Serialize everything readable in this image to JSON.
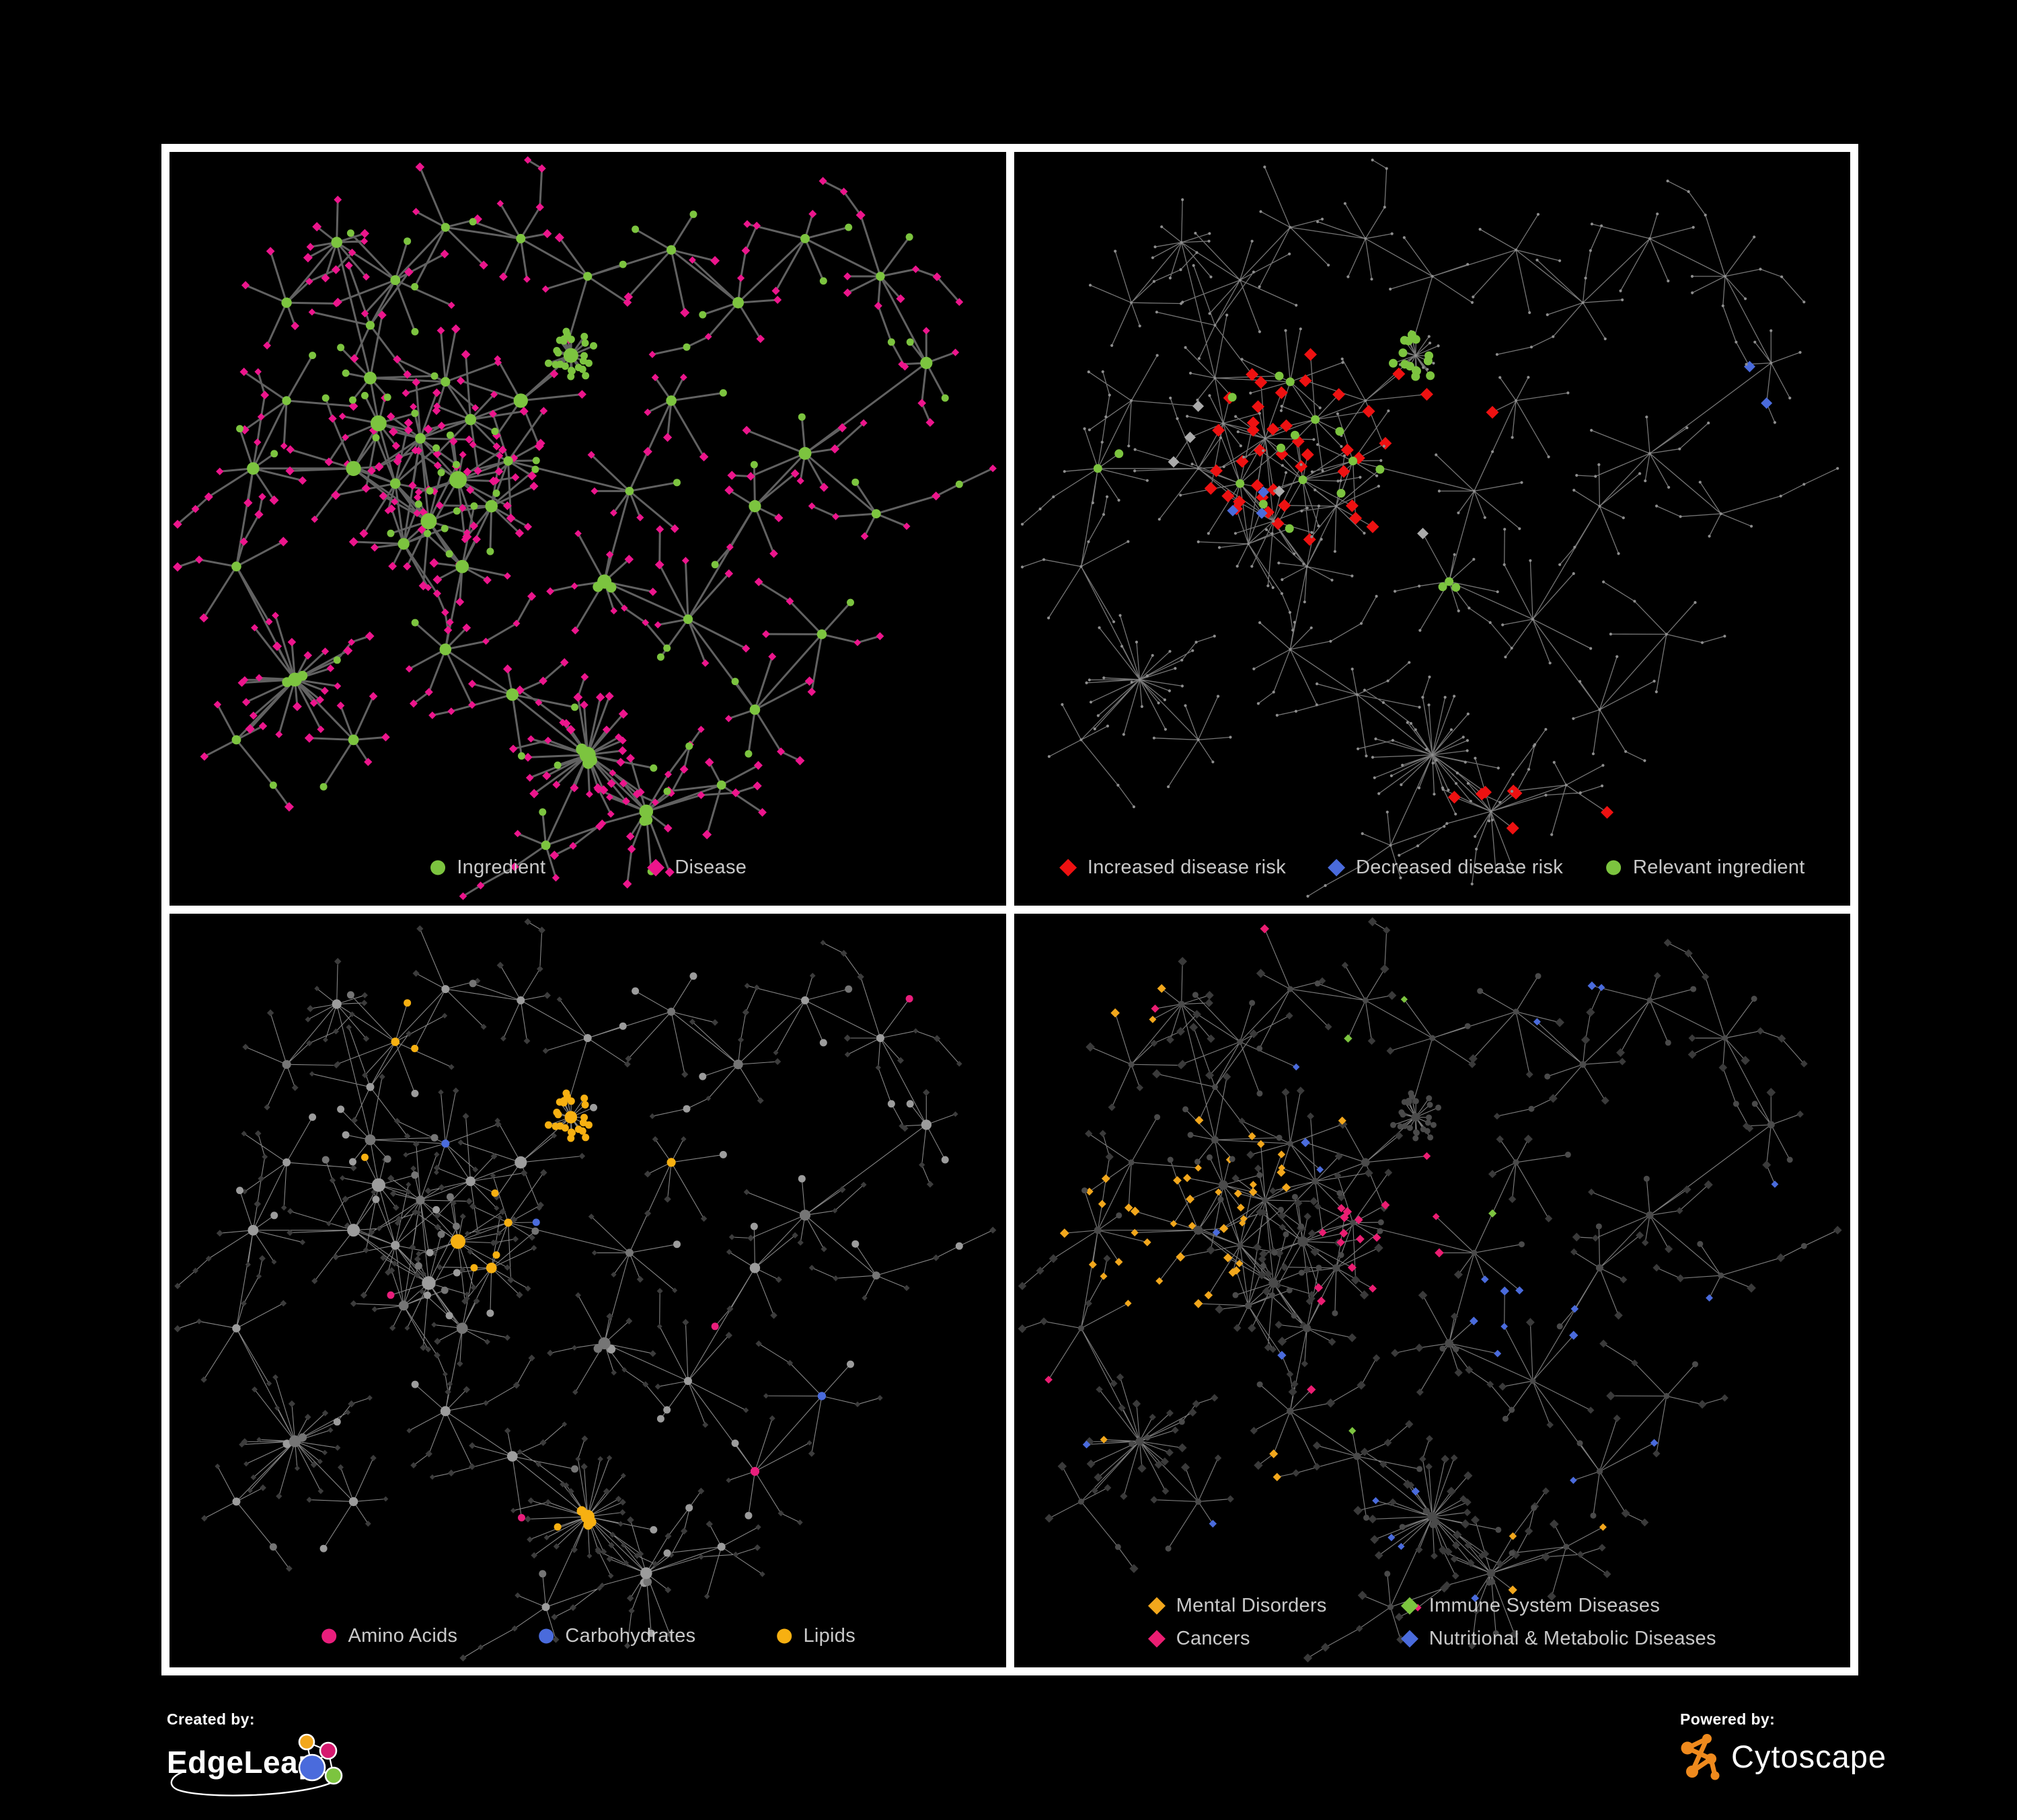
{
  "page": {
    "background": "#000000",
    "frame_color": "#FFFFFF"
  },
  "colors": {
    "ingredient_green": "#7CC43F",
    "disease_pink": "#EC158C",
    "risk_red": "#EE1111",
    "risk_blue": "#4A6BDC",
    "neutral_gray_diamond": "#ABABAB",
    "lipids_yellow": "#F7B011",
    "amino_pink": "#E91E7C",
    "carb_blue": "#4A6BDC",
    "mental_orange": "#F2A71C",
    "cancers_pink": "#EB1D72",
    "immune_green": "#7CC43F",
    "nutritional_blue": "#4A6BDC",
    "legend_text": "#C9C9C9"
  },
  "panels": [
    {
      "name": "ingredient-disease-network",
      "legend_layout": "row",
      "legend": [
        {
          "shape": "circle",
          "color": "#7CC43F",
          "label": "Ingredient"
        },
        {
          "shape": "diamond",
          "color": "#EC158C",
          "label": "Disease"
        }
      ],
      "net": {
        "mode": "two-tone",
        "seed": 11,
        "edge": {
          "color": "#666666",
          "width": 3.0,
          "opacity": 0.95
        },
        "circle_color": "#7CC43F",
        "diamond_color": "#EC158C",
        "leaf_circle_r": 5.5,
        "diamond_s": 6.2
      }
    },
    {
      "name": "disease-risk-network",
      "legend_layout": "row",
      "legend": [
        {
          "shape": "diamond",
          "color": "#EE1111",
          "label": "Increased disease risk"
        },
        {
          "shape": "diamond",
          "color": "#4A6BDC",
          "label": "Decreased disease risk"
        },
        {
          "shape": "circle",
          "color": "#7CC43F",
          "label": "Relevant ingredient"
        }
      ],
      "net": {
        "mode": "highlight",
        "seed": 22,
        "edge": {
          "color": "#8A8A8A",
          "width": 1.3,
          "opacity": 0.85
        },
        "base_color": "#8E8E8E",
        "base_r": 2.1,
        "rules": [
          {
            "name": "increased-risk",
            "shape": "diamond",
            "color": "#EE1111",
            "size": 9.5,
            "anchors": [
              [
                0.37,
                0.39,
                0.15,
                0.45
              ],
              [
                0.52,
                0.33,
                0.06,
                0.5
              ],
              [
                0.57,
                0.86,
                0.05,
                0.7
              ],
              [
                0.72,
                0.9,
                0.04,
                0.8
              ],
              [
                0.63,
                0.53,
                0.05,
                0.3
              ],
              [
                0.6,
                0.13,
                0.04,
                0.4
              ]
            ]
          },
          {
            "name": "decreased-risk",
            "shape": "diamond",
            "color": "#4A6BDC",
            "size": 8.5,
            "anchors": [
              [
                0.9,
                0.29,
                0.05,
                0.7
              ],
              [
                0.27,
                0.46,
                0.055,
                0.5
              ]
            ]
          },
          {
            "name": "other-association",
            "shape": "diamond",
            "color": "#ABABAB",
            "size": 8.5,
            "anchors": [
              [
                0.3,
                0.41,
                0.13,
                0.1
              ],
              [
                0.47,
                0.5,
                0.05,
                0.3
              ],
              [
                0.22,
                0.4,
                0.05,
                0.45
              ]
            ]
          },
          {
            "name": "relevant-ingredient",
            "shape": "circle",
            "color": "#7CC43F",
            "size": 6.5,
            "anchors": [
              [
                0.4,
                0.37,
                0.15,
                0.5
              ],
              [
                0.12,
                0.43,
                0.05,
                0.7
              ],
              [
                0.52,
                0.57,
                0.04,
                1.0
              ],
              [
                0.3,
                0.2,
                0.04,
                0.4
              ],
              [
                0.48,
                0.27,
                0.04,
                0.2
              ]
            ]
          }
        ]
      }
    },
    {
      "name": "ingredient-groups-network",
      "legend_layout": "row",
      "legend": [
        {
          "shape": "circle",
          "color": "#E91E7C",
          "label": "Amino Acids"
        },
        {
          "shape": "circle",
          "color": "#4A6BDC",
          "label": "Carbohydrates"
        },
        {
          "shape": "circle",
          "color": "#F7B011",
          "label": "Lipids"
        }
      ],
      "net": {
        "mode": "circle-cat",
        "seed": 33,
        "edge": {
          "color": "#A7A7A7",
          "width": 1.1,
          "opacity": 0.8
        },
        "diamond_color": "#3C3C3C",
        "diamond_s": 4.6,
        "circle_color": "#9C9C9C",
        "circle_alt": "#757575",
        "leaf_circle_r": 5.5,
        "rules": [
          {
            "name": "carbohydrates",
            "color": "#4A6BDC",
            "scatter": 0.012,
            "anchors": [
              [
                0.4,
                0.185,
                0.045,
                0.6
              ],
              [
                0.355,
                0.295,
                0.035,
                0.4
              ]
            ]
          },
          {
            "name": "lipids",
            "color": "#F7B011",
            "scatter": 0.035,
            "anchors": [
              [
                0.48,
                0.27,
                0.05,
                0.95
              ],
              [
                0.37,
                0.2,
                0.1,
                0.5
              ],
              [
                0.42,
                0.43,
                0.085,
                0.55
              ],
              [
                0.5,
                0.8,
                0.05,
                0.9
              ],
              [
                0.56,
                0.6,
                0.05,
                0.4
              ],
              [
                0.3,
                0.12,
                0.06,
                0.4
              ]
            ]
          },
          {
            "name": "amino-acids",
            "color": "#E91E7C",
            "scatter": 0.05,
            "south": [
              0.58,
              0.11
            ],
            "anchors": [
              [
                0.57,
                0.72,
                0.05,
                0.5
              ],
              [
                0.1,
                0.44,
                0.04,
                0.5
              ]
            ]
          }
        ]
      }
    },
    {
      "name": "disease-groups-network",
      "legend_layout": "grid2",
      "legend": [
        {
          "shape": "diamond",
          "color": "#F2A71C",
          "label": "Mental Disorders"
        },
        {
          "shape": "diamond",
          "color": "#7CC43F",
          "label": "Immune System Diseases"
        },
        {
          "shape": "diamond",
          "color": "#EB1D72",
          "label": "Cancers"
        },
        {
          "shape": "diamond",
          "color": "#4A6BDC",
          "label": "Nutritional & Metabolic Diseases"
        }
      ],
      "net": {
        "mode": "diamond-cat",
        "seed": 44,
        "edge": {
          "color": "#9A9A9A",
          "width": 1.15,
          "opacity": 0.8
        },
        "circle_color": "#4A4A4A",
        "leaf_circle_r": 4.5,
        "diamond_color": "#3A3A3A",
        "diamond_s": 6.0,
        "rules": [
          {
            "name": "mental-disorders",
            "color": "#F2A71C",
            "scatter": 0.02,
            "anchors": [
              [
                0.17,
                0.43,
                0.115,
                0.85
              ],
              [
                0.26,
                0.33,
                0.07,
                0.5
              ],
              [
                0.13,
                0.1,
                0.06,
                0.45
              ],
              [
                0.3,
                0.7,
                0.05,
                0.5
              ]
            ]
          },
          {
            "name": "cancers",
            "color": "#EB1D72",
            "scatter": 0.02,
            "anchors": [
              [
                0.45,
                0.46,
                0.1,
                0.7
              ],
              [
                0.52,
                0.33,
                0.06,
                0.5
              ],
              [
                0.88,
                0.42,
                0.05,
                0.8
              ],
              [
                0.4,
                0.63,
                0.05,
                0.5
              ],
              [
                0.2,
                0.88,
                0.04,
                0.4
              ]
            ]
          },
          {
            "name": "nutritional-metabolic",
            "color": "#4A6BDC",
            "scatter": 0.03,
            "anchors": [
              [
                0.62,
                0.53,
                0.085,
                0.75
              ],
              [
                0.6,
                0.1,
                0.07,
                0.5
              ],
              [
                0.78,
                0.28,
                0.075,
                0.55
              ],
              [
                0.88,
                0.6,
                0.05,
                0.5
              ],
              [
                0.46,
                0.8,
                0.05,
                0.35
              ],
              [
                0.7,
                0.08,
                0.05,
                0.5
              ]
            ]
          },
          {
            "name": "immune-system",
            "color": "#7CC43F",
            "scatter": 0.022,
            "anchors": []
          }
        ]
      }
    }
  ],
  "network": {
    "seed": 1337,
    "hubs": [
      [
        0.3,
        0.38,
        12,
        1
      ],
      [
        0.345,
        0.435,
        14,
        1
      ],
      [
        0.27,
        0.44,
        10,
        1
      ],
      [
        0.36,
        0.355,
        9,
        1
      ],
      [
        0.31,
        0.49,
        11,
        1
      ],
      [
        0.25,
        0.36,
        8,
        1
      ],
      [
        0.385,
        0.47,
        10,
        1
      ],
      [
        0.33,
        0.305,
        7,
        1
      ],
      [
        0.405,
        0.41,
        8,
        1
      ],
      [
        0.28,
        0.52,
        9,
        1
      ],
      [
        0.22,
        0.42,
        7,
        1
      ],
      [
        0.35,
        0.55,
        8,
        1
      ],
      [
        0.42,
        0.33,
        6,
        1
      ],
      [
        0.24,
        0.3,
        6,
        1
      ],
      [
        0.48,
        0.27,
        24,
        2
      ],
      [
        0.2,
        0.12,
        8,
        0
      ],
      [
        0.27,
        0.17,
        7,
        0
      ],
      [
        0.14,
        0.2,
        6,
        0
      ],
      [
        0.33,
        0.1,
        5,
        0
      ],
      [
        0.24,
        0.23,
        5,
        0
      ],
      [
        0.42,
        0.115,
        6,
        0
      ],
      [
        0.5,
        0.165,
        5,
        0
      ],
      [
        0.6,
        0.13,
        5,
        0
      ],
      [
        0.68,
        0.2,
        6,
        0
      ],
      [
        0.76,
        0.115,
        5,
        0
      ],
      [
        0.85,
        0.165,
        7,
        0
      ],
      [
        0.905,
        0.28,
        6,
        0
      ],
      [
        0.76,
        0.4,
        7,
        0
      ],
      [
        0.845,
        0.48,
        5,
        0
      ],
      [
        0.7,
        0.47,
        6,
        0
      ],
      [
        0.1,
        0.42,
        8,
        0
      ],
      [
        0.14,
        0.33,
        5,
        0
      ],
      [
        0.08,
        0.55,
        5,
        0
      ],
      [
        0.15,
        0.7,
        22,
        3
      ],
      [
        0.22,
        0.78,
        6,
        0
      ],
      [
        0.08,
        0.78,
        4,
        0
      ],
      [
        0.33,
        0.66,
        7,
        0
      ],
      [
        0.41,
        0.72,
        6,
        0
      ],
      [
        0.5,
        0.8,
        30,
        4
      ],
      [
        0.57,
        0.875,
        14,
        3
      ],
      [
        0.45,
        0.92,
        5,
        0
      ],
      [
        0.62,
        0.62,
        7,
        0
      ],
      [
        0.7,
        0.74,
        6,
        0
      ],
      [
        0.78,
        0.64,
        5,
        0
      ],
      [
        0.66,
        0.84,
        5,
        0
      ],
      [
        0.55,
        0.45,
        7,
        0
      ],
      [
        0.6,
        0.33,
        6,
        0
      ],
      [
        0.52,
        0.57,
        8,
        3
      ]
    ],
    "extra_edges": [
      [
        0,
        4
      ],
      [
        1,
        6
      ],
      [
        2,
        5
      ],
      [
        3,
        12
      ],
      [
        1,
        8
      ],
      [
        4,
        10
      ],
      [
        0,
        9
      ],
      [
        7,
        13
      ],
      [
        9,
        2
      ],
      [
        5,
        10
      ],
      [
        6,
        11
      ],
      [
        45,
        47
      ],
      [
        27,
        29
      ],
      [
        45,
        46
      ],
      [
        41,
        47
      ],
      [
        36,
        37
      ],
      [
        15,
        17
      ],
      [
        20,
        21
      ]
    ]
  },
  "footer": {
    "created_by_label": "Created by:",
    "left_brand": "EdgeLeap",
    "powered_by_label": "Powered by:",
    "right_brand": "Cytoscape",
    "cytoscape_orange": "#EF8A1D",
    "edgeleap_node_colors": [
      "#F2A71C",
      "#D6196F",
      "#4A6BDC",
      "#7CC43F"
    ]
  }
}
